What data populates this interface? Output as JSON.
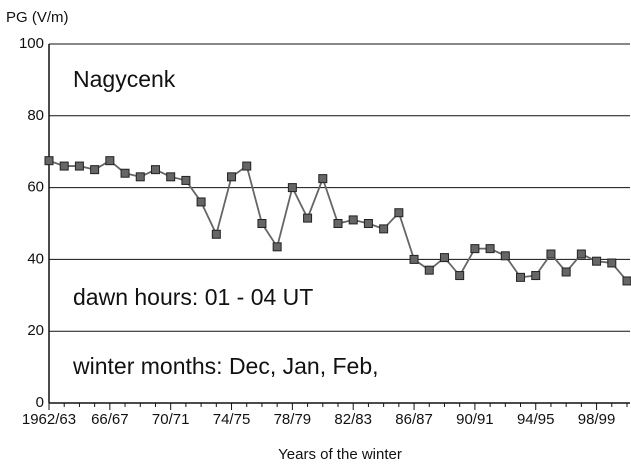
{
  "chart_data": {
    "type": "line",
    "y_label": "PG (V/m)",
    "x_label": "Years of the winter",
    "annotations": [
      "Nagycenk",
      "dawn hours: 01 - 04 UT",
      "winter months: Dec, Jan, Feb,"
    ],
    "categories": [
      "1962/63",
      null,
      null,
      null,
      "66/67",
      null,
      null,
      null,
      "70/71",
      null,
      null,
      null,
      "74/75",
      null,
      null,
      null,
      "78/79",
      null,
      null,
      null,
      "82/83",
      null,
      null,
      null,
      "86/87",
      null,
      null,
      null,
      "90/91",
      null,
      null,
      null,
      "94/95",
      null,
      null,
      null,
      "98/99",
      null,
      null
    ],
    "values": [
      67.5,
      66,
      66,
      65,
      67.5,
      64,
      63,
      65,
      63,
      62,
      56,
      47,
      63,
      66,
      50,
      43.5,
      60,
      51.5,
      62.5,
      50,
      51,
      50,
      48.5,
      53,
      40,
      37,
      40.5,
      35.5,
      43,
      43,
      41,
      35,
      35.5,
      41.5,
      36.5,
      41.5,
      39.5,
      39,
      34
    ],
    "color": "#666666",
    "ylim": [
      0,
      100
    ],
    "yticks": [
      0,
      20,
      40,
      60,
      80,
      100
    ],
    "grid": true
  }
}
